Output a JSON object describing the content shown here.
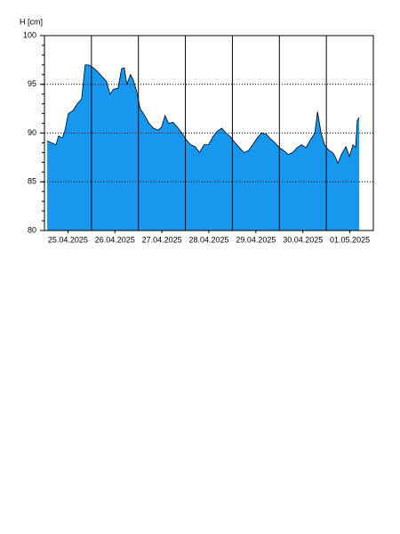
{
  "chart_data": {
    "type": "area",
    "y_label": "H [cm]",
    "series": [
      {
        "name": "H",
        "color": "#1797ee",
        "x": [
          1.4,
          3.6,
          5.9,
          7.2,
          9.1,
          10.4,
          12.2,
          14.5,
          16.8,
          19.0,
          20.8,
          22.6,
          24.9,
          27.2,
          29.4,
          31.7,
          33.5,
          35.3,
          37.6,
          39.4,
          40.8,
          42.1,
          43.9,
          45.3,
          47.1,
          48.9,
          51.2,
          53.4,
          55.7,
          58.0,
          59.8,
          61.6,
          63.4,
          65.7,
          67.9,
          70.2,
          72.5,
          74.7,
          77.0,
          79.2,
          81.5,
          83.8,
          86.0,
          88.3,
          90.6,
          92.8,
          95.1,
          97.4,
          99.6,
          101.9,
          104.2,
          106.4,
          108.7,
          110.9,
          113.2,
          115.5,
          117.7,
          120.0,
          122.3,
          124.5,
          126.8,
          129.1,
          131.3,
          133.6,
          135.8,
          138.1,
          139.5,
          141.3,
          143.1,
          144.9,
          147.2,
          148.5,
          149.9,
          151.7,
          154.0,
          155.8,
          157.6,
          158.9,
          159.8,
          160.8
        ],
        "values": [
          89.2,
          89.0,
          88.8,
          89.7,
          89.5,
          90.2,
          92.0,
          92.3,
          93.0,
          93.5,
          97.0,
          97.0,
          96.7,
          96.3,
          95.8,
          95.3,
          94.0,
          94.5,
          94.6,
          96.6,
          96.7,
          95.0,
          96.0,
          95.5,
          94.3,
          92.5,
          91.8,
          91.0,
          90.5,
          90.3,
          90.6,
          91.8,
          91.0,
          91.1,
          90.6,
          90.0,
          89.3,
          88.8,
          88.6,
          88.0,
          88.8,
          88.8,
          89.6,
          90.2,
          90.5,
          90.0,
          89.6,
          89.0,
          88.5,
          88.0,
          88.2,
          88.8,
          89.5,
          90.0,
          89.9,
          89.4,
          89.0,
          88.5,
          88.2,
          87.8,
          88.0,
          88.5,
          88.8,
          88.5,
          89.3,
          90.0,
          92.2,
          90.0,
          88.8,
          88.3,
          88.0,
          87.6,
          86.9,
          87.8,
          88.6,
          87.6,
          88.8,
          88.5,
          91.3,
          91.6
        ]
      }
    ],
    "xlim": [
      0,
      168
    ],
    "xticks": [
      {
        "value": 12,
        "label": "25.04.2025"
      },
      {
        "value": 36,
        "label": "26.04.2025"
      },
      {
        "value": 60,
        "label": "27.04.2025"
      },
      {
        "value": 84,
        "label": "28.04.2025"
      },
      {
        "value": 108,
        "label": "29.04.2025"
      },
      {
        "value": 132,
        "label": "30.04.2025"
      },
      {
        "value": 156,
        "label": "01.05.2025"
      }
    ],
    "x_grid_lines": [
      24,
      48,
      72,
      96,
      120,
      144
    ],
    "ylim": [
      80,
      100
    ],
    "yticks": [
      80,
      85,
      90,
      95,
      100
    ],
    "y_minor_step": 1,
    "grid": true
  }
}
